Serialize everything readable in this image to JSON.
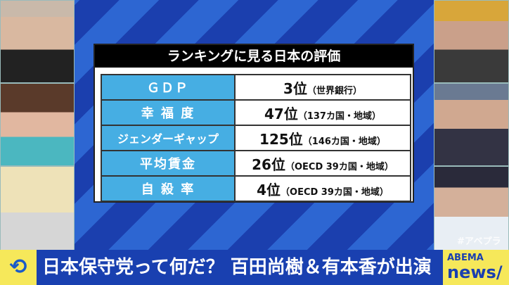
{
  "board": {
    "title": "ランキングに見る日本の評価",
    "rows": [
      {
        "label": "ＧＤＰ",
        "rank": "3位",
        "note": "（世界銀行）"
      },
      {
        "label": "幸 福 度",
        "rank": "47位",
        "note": "（137カ国・地域）"
      },
      {
        "label": "ジェンダーギャップ",
        "rank": "125位",
        "note": "（146カ国・地域）"
      },
      {
        "label": "平均賃金",
        "rank": "26位",
        "note": "（OECD 39カ国・地域）"
      },
      {
        "label": "自 殺 率",
        "rank": "4位",
        "note": "（OECD 39カ国・地域）"
      }
    ]
  },
  "hashtag": "#アベプラ",
  "ticker": {
    "headline": "日本保守党って何だ？ 百田尚樹＆有本香が出演"
  },
  "logo": {
    "top": "ABEMA",
    "bottom": "news/"
  },
  "colors": {
    "label_bg": "#46aee3",
    "ticker_bg": "#1940b0",
    "accent_yellow": "#f6e85a"
  }
}
